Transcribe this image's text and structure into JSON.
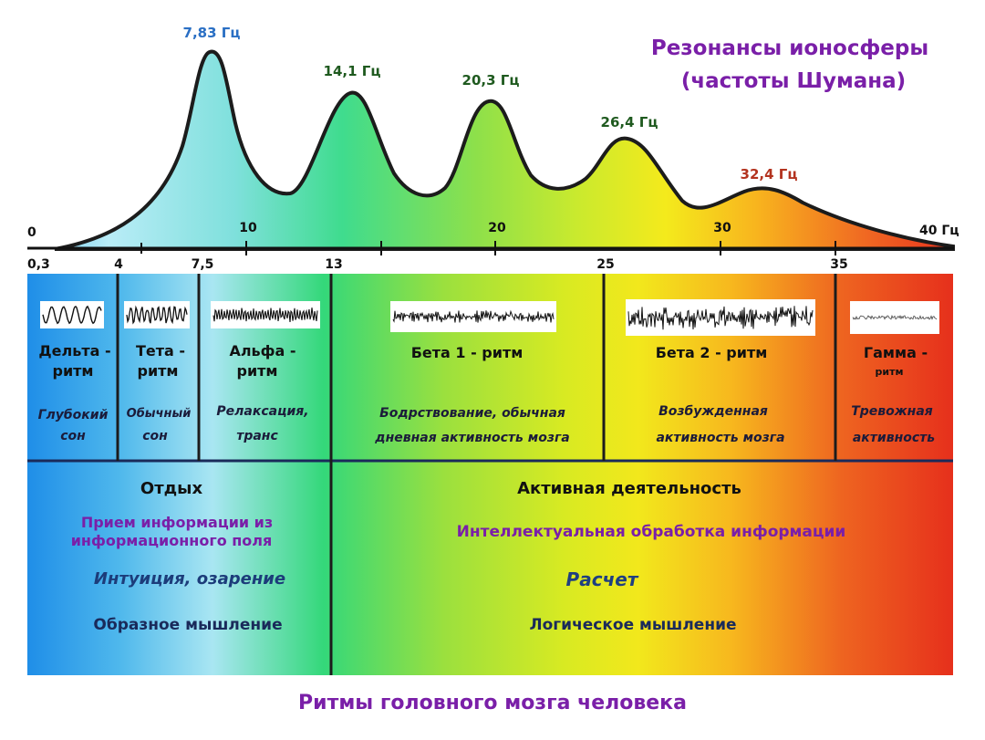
{
  "diagram": {
    "title_schumann": [
      "Резонансы ионосферы",
      "(частоты Шумана)"
    ],
    "footer_title": "Ритмы головного мозга человека",
    "peaks": [
      {
        "label": "7,83 Гц",
        "color": "#2a6fc4"
      },
      {
        "label": "14,1 Гц",
        "color": "#1f5a1f"
      },
      {
        "label": "20,3 Гц",
        "color": "#1f5a1f"
      },
      {
        "label": "26,4  Гц",
        "color": "#1f5a1f"
      },
      {
        "label": "32,4 Гц",
        "color": "#b3331f"
      }
    ],
    "hz_axis": [
      "0",
      "10",
      "20",
      "30",
      "40 Гц"
    ],
    "band_axis": [
      "0,3",
      "4",
      "7,5",
      "13",
      "25",
      "35"
    ],
    "bands": [
      {
        "name": [
          "Дельта -",
          "ритм"
        ],
        "state": [
          "Глубокий",
          "сон"
        ]
      },
      {
        "name": [
          "Тета -",
          "ритм"
        ],
        "state": [
          "Обычный",
          "сон"
        ]
      },
      {
        "name": [
          "Альфа -",
          "ритм"
        ],
        "state": [
          "Релаксация,",
          "транс"
        ]
      },
      {
        "name": [
          "Бета 1 - ритм"
        ],
        "state": [
          "Бодрствование, обычная",
          "дневная активность мозга"
        ]
      },
      {
        "name": [
          "Бета 2 - ритм"
        ],
        "state": [
          "Возбужденная",
          "активность мозга"
        ]
      },
      {
        "name": [
          "Гамма -",
          "ритм"
        ],
        "state": [
          "Тревожная",
          "активность"
        ]
      }
    ],
    "rest": {
      "title": "Отдых",
      "info": [
        "Прием информации из",
        "информационного  поля"
      ],
      "intuition": "Интуиция, озарение",
      "thinking": "Образное мышление"
    },
    "active": {
      "title": "Активная деятельность",
      "info": "Интеллектуальная  обработка  информации",
      "calc": "Расчет",
      "thinking": "Логическое мышление"
    }
  }
}
